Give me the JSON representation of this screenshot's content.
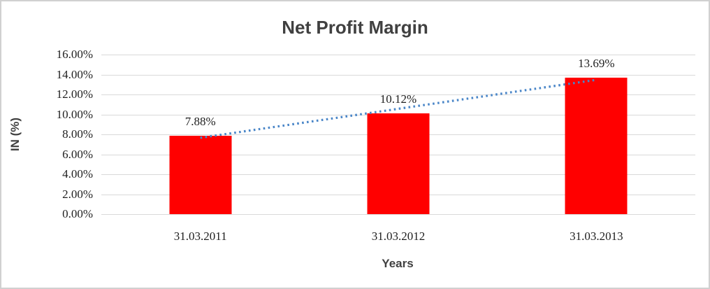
{
  "chart_data": {
    "type": "bar",
    "title": "Net Profit Margin",
    "xlabel": "Years",
    "ylabel": "IN (%)",
    "categories": [
      "31.03.2011",
      "31.03.2012",
      "31.03.2013"
    ],
    "values": [
      7.88,
      10.12,
      13.69
    ],
    "data_labels": [
      "7.88%",
      "10.12%",
      "13.69%"
    ],
    "ylim": [
      0,
      16
    ],
    "y_tick_values": [
      16,
      14,
      12,
      10,
      8,
      6,
      4,
      2,
      0
    ],
    "y_tick_labels": [
      "16.00%",
      "14.00%",
      "12.00%",
      "10.00%",
      "8.00%",
      "6.00%",
      "4.00%",
      "2.00%",
      "0.00%"
    ],
    "grid": true,
    "legend_position": "none",
    "bar_color": "#ff0000",
    "gridline_color": "#d9d9d9",
    "text_color": "#1f1f1f",
    "title_color": "#404040",
    "trendline": {
      "type": "linear",
      "style": "dotted",
      "color": "#4a86c8"
    }
  }
}
